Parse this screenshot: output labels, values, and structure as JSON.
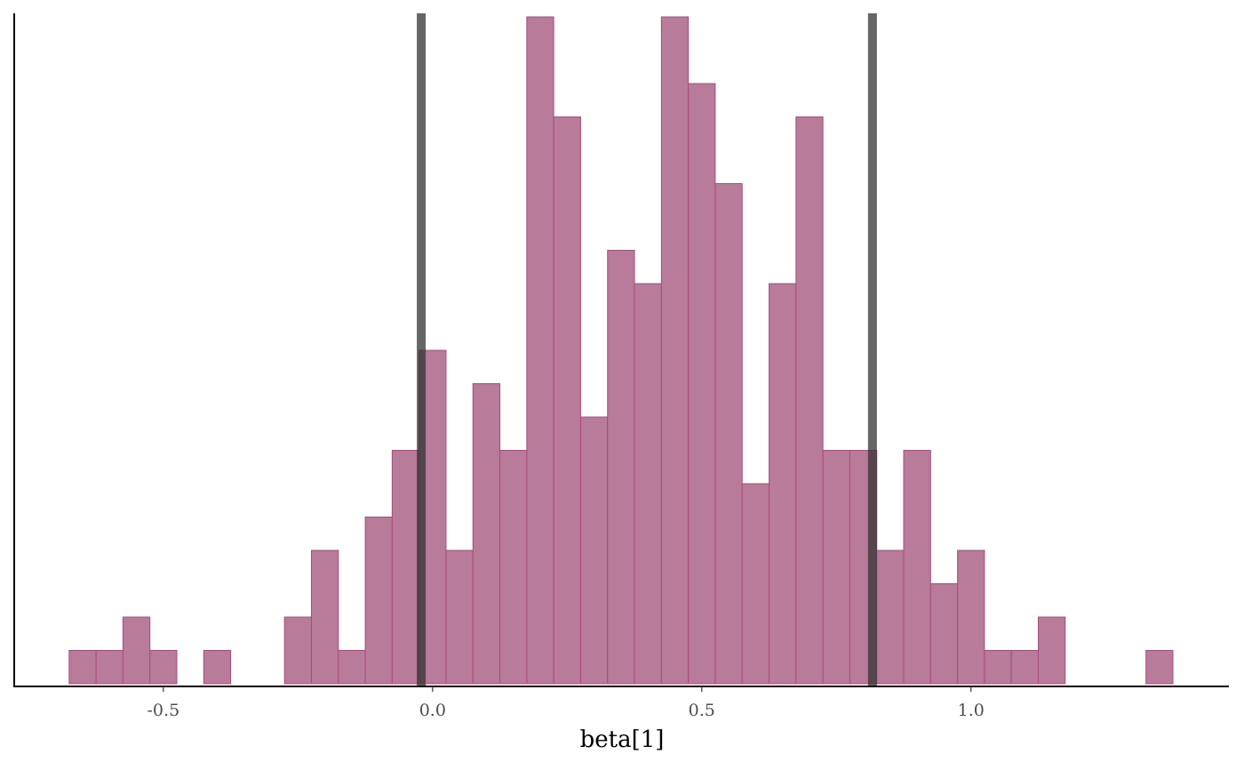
{
  "chart_data": {
    "type": "bar",
    "subtype": "histogram",
    "title": "",
    "xlabel": "beta[1]",
    "ylabel": "",
    "bin_width": 0.05,
    "bin_centers": [
      -0.65,
      -0.6,
      -0.55,
      -0.5,
      -0.45,
      -0.4,
      -0.35,
      -0.3,
      -0.25,
      -0.2,
      -0.15,
      -0.1,
      -0.05,
      0.0,
      0.05,
      0.1,
      0.15,
      0.2,
      0.25,
      0.3,
      0.35,
      0.4,
      0.45,
      0.5,
      0.55,
      0.6,
      0.65,
      0.7,
      0.75,
      0.8,
      0.85,
      0.9,
      0.95,
      1.0,
      1.05,
      1.1,
      1.15,
      1.2,
      1.25,
      1.3,
      1.35
    ],
    "counts": [
      1,
      1,
      2,
      1,
      0,
      1,
      0,
      0,
      2,
      4,
      1,
      5,
      7,
      10,
      4,
      9,
      7,
      20,
      17,
      8,
      13,
      12,
      20,
      18,
      15,
      6,
      12,
      17,
      7,
      7,
      4,
      7,
      3,
      4,
      1,
      1,
      2,
      0,
      0,
      0,
      1
    ],
    "xlim": [
      -0.777,
      1.479
    ],
    "ylim": [
      0,
      20.1
    ],
    "x_ticks": [
      "-0.5",
      "0.0",
      "0.5",
      "1.0"
    ],
    "x_tick_values": [
      -0.5,
      0.0,
      0.5,
      1.0
    ],
    "y_axis_labels_shown": false,
    "grid": false,
    "vertical_lines": [
      -0.021,
      0.817
    ],
    "colors": {
      "bar_fill": "#b87b99",
      "bar_stroke": "#a84b7e",
      "vline": "#333333"
    }
  }
}
